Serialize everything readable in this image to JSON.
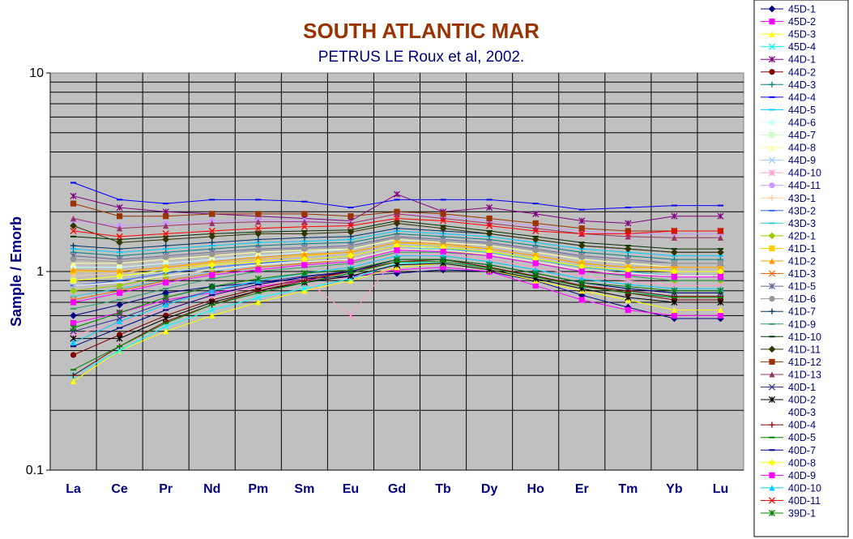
{
  "chart_data": {
    "type": "line",
    "title": "SOUTH ATLANTIC MAR",
    "subtitle": "PETRUS LE Roux et al, 2002.",
    "ylabel": "Sample / Emorb",
    "xlabel": "",
    "yscale": "log",
    "ylim": [
      0.1,
      10
    ],
    "yticks": [
      "0.1",
      "1",
      "10"
    ],
    "grid": true,
    "plot_background": "#c0c0c0",
    "legend_position": "right",
    "categories": [
      "La",
      "Ce",
      "Pr",
      "Nd",
      "Pm",
      "Sm",
      "Eu",
      "Gd",
      "Tb",
      "Dy",
      "Ho",
      "Er",
      "Tm",
      "Yb",
      "Lu"
    ],
    "series": [
      {
        "name": "45D-1",
        "color": "#000080",
        "marker": "diamond",
        "values": [
          0.6,
          0.68,
          0.78,
          0.84,
          0.88,
          0.92,
          0.95,
          0.98,
          1.02,
          1.0,
          0.9,
          0.76,
          0.66,
          0.58,
          0.58
        ]
      },
      {
        "name": "45D-2",
        "color": "#ff00ff",
        "marker": "square",
        "values": [
          0.55,
          0.62,
          0.72,
          0.78,
          0.84,
          0.9,
          0.94,
          1.02,
          1.05,
          1.0,
          0.85,
          0.72,
          0.64,
          0.6,
          0.6
        ]
      },
      {
        "name": "45D-3",
        "color": "#ffff00",
        "marker": "triangle",
        "values": [
          0.28,
          0.4,
          0.5,
          0.6,
          0.7,
          0.8,
          0.9,
          1.05,
          1.1,
          1.02,
          0.9,
          0.8,
          0.72,
          0.64,
          0.64
        ]
      },
      {
        "name": "45D-4",
        "color": "#00ffff",
        "marker": "x",
        "values": [
          0.3,
          0.4,
          0.53,
          0.64,
          0.74,
          0.82,
          0.92,
          1.1,
          1.12,
          1.05,
          0.95,
          0.85,
          0.8,
          0.74,
          0.74
        ]
      },
      {
        "name": "44D-1",
        "color": "#800080",
        "marker": "star",
        "values": [
          2.4,
          2.1,
          2.0,
          1.95,
          1.9,
          1.85,
          1.8,
          2.45,
          2.0,
          2.1,
          1.95,
          1.8,
          1.75,
          1.9,
          1.9
        ]
      },
      {
        "name": "44D-2",
        "color": "#800000",
        "marker": "circle",
        "values": [
          0.38,
          0.48,
          0.6,
          0.72,
          0.82,
          0.92,
          1.0,
          1.12,
          1.15,
          1.05,
          0.95,
          0.85,
          0.78,
          0.72,
          0.72
        ]
      },
      {
        "name": "44D-3",
        "color": "#008080",
        "marker": "plus",
        "values": [
          1.25,
          1.2,
          1.25,
          1.3,
          1.35,
          1.38,
          1.4,
          1.55,
          1.5,
          1.45,
          1.35,
          1.25,
          1.2,
          1.15,
          1.15
        ]
      },
      {
        "name": "44D-4",
        "color": "#0000ff",
        "marker": "dash",
        "values": [
          2.8,
          2.3,
          2.2,
          2.3,
          2.3,
          2.25,
          2.1,
          2.3,
          2.3,
          2.3,
          2.2,
          2.05,
          2.1,
          2.15,
          2.15
        ]
      },
      {
        "name": "44D-5",
        "color": "#00ccff",
        "marker": "dash",
        "values": [
          1.3,
          1.25,
          1.3,
          1.35,
          1.4,
          1.42,
          1.45,
          1.6,
          1.55,
          1.5,
          1.4,
          1.3,
          1.25,
          1.2,
          1.2
        ]
      },
      {
        "name": "44D-6",
        "color": "#ccffff",
        "marker": "circle",
        "values": [
          1.05,
          1.05,
          1.1,
          1.15,
          1.2,
          1.25,
          1.3,
          1.45,
          1.4,
          1.35,
          1.25,
          1.15,
          1.1,
          1.05,
          1.05
        ]
      },
      {
        "name": "44D-7",
        "color": "#ccffcc",
        "marker": "square",
        "values": [
          0.9,
          0.95,
          1.0,
          1.05,
          1.1,
          1.15,
          1.2,
          1.35,
          1.3,
          1.25,
          1.15,
          1.05,
          1.0,
          0.95,
          0.95
        ]
      },
      {
        "name": "44D-8",
        "color": "#ffff99",
        "marker": "triangle",
        "values": [
          1.1,
          1.1,
          1.15,
          1.2,
          1.25,
          1.28,
          1.3,
          1.45,
          1.4,
          1.35,
          1.25,
          1.15,
          1.1,
          1.05,
          1.05
        ]
      },
      {
        "name": "44D-9",
        "color": "#99ccff",
        "marker": "x",
        "values": [
          0.7,
          0.8,
          0.9,
          1.0,
          1.08,
          1.15,
          1.2,
          1.35,
          1.35,
          1.3,
          1.2,
          1.1,
          1.05,
          1.0,
          1.0
        ]
      },
      {
        "name": "44D-10",
        "color": "#ff99cc",
        "marker": "star",
        "values": [
          0.48,
          0.55,
          0.65,
          0.75,
          0.85,
          0.92,
          0.6,
          1.2,
          1.22,
          1.15,
          1.05,
          0.95,
          0.9,
          0.85,
          0.85
        ]
      },
      {
        "name": "44D-11",
        "color": "#cc99ff",
        "marker": "circle",
        "values": [
          1.8,
          1.7,
          1.75,
          1.8,
          1.82,
          1.8,
          1.75,
          1.95,
          1.9,
          1.8,
          1.7,
          1.6,
          1.55,
          1.55,
          1.55
        ]
      },
      {
        "name": "43D-1",
        "color": "#ffcc99",
        "marker": "plus",
        "values": [
          0.95,
          0.98,
          1.05,
          1.1,
          1.15,
          1.2,
          1.25,
          1.4,
          1.38,
          1.3,
          1.2,
          1.1,
          1.05,
          1.0,
          1.0
        ]
      },
      {
        "name": "43D-2",
        "color": "#3366ff",
        "marker": "dash",
        "values": [
          0.85,
          0.9,
          0.98,
          1.05,
          1.1,
          1.15,
          1.2,
          1.35,
          1.32,
          1.25,
          1.15,
          1.05,
          1.0,
          0.95,
          0.95
        ]
      },
      {
        "name": "43D-3",
        "color": "#33cccc",
        "marker": "dash",
        "values": [
          0.75,
          0.82,
          0.9,
          0.98,
          1.05,
          1.1,
          1.15,
          1.3,
          1.3,
          1.25,
          1.15,
          1.05,
          1.0,
          0.95,
          0.95
        ]
      },
      {
        "name": "42D-1",
        "color": "#99cc00",
        "marker": "diamond",
        "values": [
          0.8,
          0.85,
          0.95,
          1.02,
          1.08,
          1.12,
          1.15,
          1.3,
          1.28,
          1.2,
          1.1,
          1.0,
          0.95,
          0.9,
          0.9
        ]
      },
      {
        "name": "41D-1",
        "color": "#ffcc00",
        "marker": "square",
        "values": [
          1.0,
          1.0,
          1.05,
          1.1,
          1.15,
          1.2,
          1.25,
          1.4,
          1.35,
          1.3,
          1.2,
          1.1,
          1.05,
          1.05,
          1.05
        ]
      },
      {
        "name": "41D-2",
        "color": "#ff9900",
        "marker": "triangle",
        "values": [
          1.02,
          1.0,
          1.05,
          1.12,
          1.18,
          1.22,
          1.25,
          1.4,
          1.38,
          1.3,
          1.2,
          1.1,
          1.05,
          1.05,
          1.05
        ]
      },
      {
        "name": "41D-3",
        "color": "#ff6600",
        "marker": "x",
        "values": [
          0.72,
          0.8,
          0.9,
          0.98,
          1.05,
          1.1,
          1.15,
          1.3,
          1.28,
          1.22,
          1.12,
          1.02,
          0.98,
          0.95,
          0.95
        ]
      },
      {
        "name": "41D-5",
        "color": "#666699",
        "marker": "star",
        "values": [
          1.2,
          1.15,
          1.2,
          1.25,
          1.3,
          1.32,
          1.35,
          1.5,
          1.45,
          1.4,
          1.3,
          1.2,
          1.15,
          1.1,
          1.1
        ]
      },
      {
        "name": "41D-6",
        "color": "#969696",
        "marker": "circle",
        "values": [
          1.15,
          1.12,
          1.18,
          1.22,
          1.28,
          1.3,
          1.32,
          1.48,
          1.42,
          1.38,
          1.28,
          1.18,
          1.12,
          1.1,
          1.1
        ]
      },
      {
        "name": "41D-7",
        "color": "#003366",
        "marker": "plus",
        "values": [
          1.35,
          1.3,
          1.35,
          1.4,
          1.45,
          1.48,
          1.5,
          1.65,
          1.6,
          1.55,
          1.45,
          1.35,
          1.3,
          1.25,
          1.25
        ]
      },
      {
        "name": "41D-9",
        "color": "#339966",
        "marker": "dash",
        "values": [
          0.65,
          0.72,
          0.82,
          0.92,
          1.0,
          1.05,
          1.1,
          1.25,
          1.25,
          1.2,
          1.1,
          1.0,
          0.95,
          0.9,
          0.9
        ]
      },
      {
        "name": "41D-10",
        "color": "#003300",
        "marker": "dash",
        "values": [
          1.5,
          1.45,
          1.5,
          1.55,
          1.58,
          1.6,
          1.62,
          1.8,
          1.7,
          1.6,
          1.5,
          1.4,
          1.35,
          1.3,
          1.3
        ]
      },
      {
        "name": "41D-11",
        "color": "#333300",
        "marker": "diamond",
        "values": [
          1.7,
          1.4,
          1.45,
          1.5,
          1.55,
          1.55,
          1.58,
          1.75,
          1.65,
          1.55,
          1.45,
          1.35,
          1.3,
          1.25,
          1.25
        ]
      },
      {
        "name": "41D-12",
        "color": "#993300",
        "marker": "square",
        "values": [
          2.2,
          1.9,
          1.9,
          1.95,
          1.95,
          1.95,
          1.9,
          2.0,
          1.95,
          1.85,
          1.75,
          1.65,
          1.6,
          1.6,
          1.6
        ]
      },
      {
        "name": "41D-13",
        "color": "#993366",
        "marker": "triangle",
        "values": [
          1.85,
          1.65,
          1.7,
          1.75,
          1.78,
          1.78,
          1.75,
          1.95,
          1.85,
          1.75,
          1.65,
          1.55,
          1.5,
          1.48,
          1.48
        ]
      },
      {
        "name": "40D-1",
        "color": "#333399",
        "marker": "x",
        "values": [
          0.5,
          0.58,
          0.7,
          0.8,
          0.88,
          0.95,
          1.0,
          1.15,
          1.15,
          1.08,
          0.98,
          0.88,
          0.82,
          0.78,
          0.78
        ]
      },
      {
        "name": "40D-2",
        "color": "#000000",
        "marker": "star",
        "values": [
          0.46,
          0.46,
          0.58,
          0.7,
          0.8,
          0.88,
          0.95,
          1.08,
          1.1,
          1.02,
          0.92,
          0.82,
          0.74,
          0.7,
          0.7
        ]
      },
      {
        "name": "40D-3",
        "color": "#ffffff",
        "marker": "none",
        "values": [
          0.85,
          0.88,
          0.95,
          1.02,
          1.08,
          1.12,
          1.15,
          1.3,
          1.28,
          1.22,
          1.12,
          1.02,
          0.98,
          0.95,
          0.95
        ]
      },
      {
        "name": "40D-4",
        "color": "#800000",
        "marker": "plus",
        "values": [
          0.3,
          0.42,
          0.56,
          0.68,
          0.8,
          0.9,
          1.0,
          1.15,
          1.15,
          1.05,
          0.95,
          0.85,
          0.8,
          0.75,
          0.75
        ]
      },
      {
        "name": "40D-5",
        "color": "#008000",
        "marker": "dash",
        "values": [
          0.32,
          0.42,
          0.55,
          0.68,
          0.78,
          0.88,
          0.98,
          1.12,
          1.12,
          1.04,
          0.94,
          0.84,
          0.78,
          0.74,
          0.74
        ]
      },
      {
        "name": "40D-7",
        "color": "#000080",
        "marker": "dash",
        "values": [
          0.42,
          0.52,
          0.64,
          0.76,
          0.86,
          0.94,
          1.0,
          1.15,
          1.15,
          1.08,
          0.98,
          0.88,
          0.82,
          0.78,
          0.78
        ]
      },
      {
        "name": "40D-8",
        "color": "#ffff00",
        "marker": "diamond",
        "values": [
          0.9,
          0.95,
          1.02,
          1.08,
          1.12,
          1.15,
          1.2,
          1.35,
          1.32,
          1.26,
          1.16,
          1.06,
          1.02,
          1.0,
          1.0
        ]
      },
      {
        "name": "40D-9",
        "color": "#ff00ff",
        "marker": "square",
        "values": [
          0.7,
          0.78,
          0.88,
          0.96,
          1.02,
          1.08,
          1.12,
          1.28,
          1.26,
          1.2,
          1.1,
          1.0,
          0.96,
          0.94,
          0.94
        ]
      },
      {
        "name": "40D-10",
        "color": "#00ccff",
        "marker": "triangle",
        "values": [
          0.44,
          0.56,
          0.68,
          0.8,
          0.9,
          0.98,
          1.05,
          1.2,
          1.2,
          1.12,
          1.02,
          0.92,
          0.86,
          0.82,
          0.82
        ]
      },
      {
        "name": "40D-11",
        "color": "#ff0000",
        "marker": "x",
        "values": [
          1.6,
          1.5,
          1.55,
          1.6,
          1.65,
          1.68,
          1.7,
          1.85,
          1.8,
          1.7,
          1.6,
          1.55,
          1.55,
          1.6,
          1.6
        ]
      },
      {
        "name": "39D-1",
        "color": "#008000",
        "marker": "star",
        "values": [
          0.52,
          0.62,
          0.74,
          0.84,
          0.92,
          0.98,
          1.02,
          1.15,
          1.15,
          1.08,
          0.98,
          0.88,
          0.84,
          0.8,
          0.8
        ]
      }
    ]
  }
}
